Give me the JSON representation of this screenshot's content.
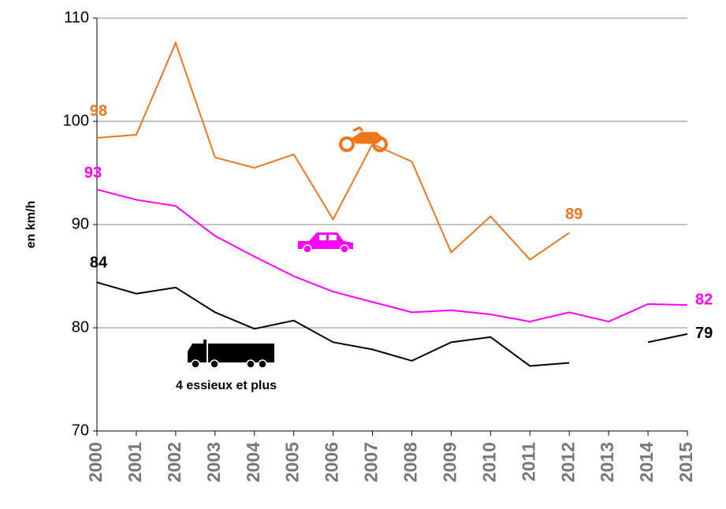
{
  "chart_data": {
    "type": "line",
    "y_label": "en km/h",
    "annotation": "4 essieux et plus",
    "categories": [
      "2000",
      "2001",
      "2002",
      "2003",
      "2004",
      "2005",
      "2006",
      "2007",
      "2008",
      "2009",
      "2010",
      "2011",
      "2012",
      "2013",
      "2014",
      "2015"
    ],
    "series": [
      {
        "color": "#f0761e",
        "values": [
          98.4,
          98.7,
          107.6,
          96.5,
          95.5,
          96.8,
          90.5,
          97.8,
          96.1,
          87.3,
          90.8,
          86.6,
          89.2,
          null,
          null,
          null
        ],
        "value_labels": [
          "98",
          null,
          null,
          null,
          null,
          null,
          null,
          null,
          null,
          null,
          null,
          null,
          "89",
          null,
          null,
          null
        ]
      },
      {
        "color": "#ff00ff",
        "values": [
          93.4,
          92.4,
          91.8,
          88.9,
          86.9,
          85.0,
          83.5,
          82.5,
          81.5,
          81.7,
          81.3,
          80.6,
          81.5,
          80.6,
          82.3,
          82.2
        ],
        "value_labels": [
          "93",
          null,
          null,
          null,
          null,
          null,
          null,
          null,
          null,
          null,
          null,
          null,
          null,
          null,
          null,
          "82"
        ]
      },
      {
        "color": "#000000",
        "values": [
          84.4,
          83.3,
          83.9,
          81.5,
          79.9,
          80.7,
          78.6,
          77.9,
          76.8,
          78.6,
          79.1,
          76.3,
          76.6,
          null,
          78.6,
          79.4
        ],
        "value_labels": [
          "84",
          null,
          null,
          null,
          null,
          null,
          null,
          null,
          null,
          null,
          null,
          null,
          null,
          null,
          null,
          "79"
        ]
      }
    ],
    "ylim": [
      70,
      110
    ],
    "yticks": [
      70,
      80,
      90,
      100,
      110
    ],
    "grid": true
  }
}
